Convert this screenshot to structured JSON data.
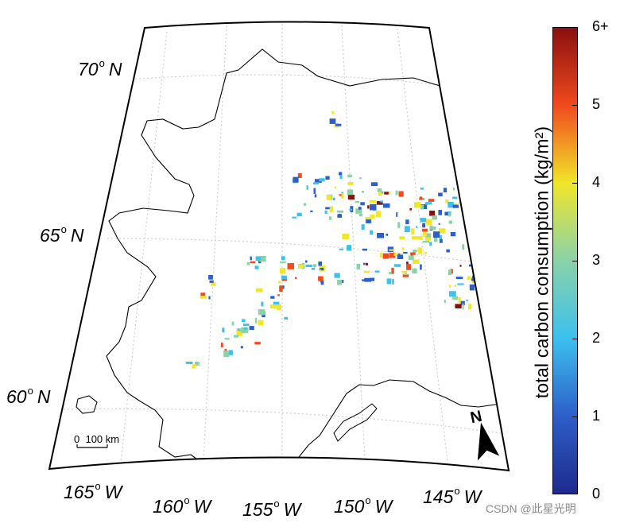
{
  "map": {
    "lat_labels": [
      {
        "deg": "70",
        "hemi": "N"
      },
      {
        "deg": "65",
        "hemi": "N"
      },
      {
        "deg": "60",
        "hemi": "N"
      }
    ],
    "lon_labels": [
      {
        "deg": "165",
        "hemi": "W"
      },
      {
        "deg": "160",
        "hemi": "W"
      },
      {
        "deg": "155",
        "hemi": "W"
      },
      {
        "deg": "150",
        "hemi": "W"
      },
      {
        "deg": "145",
        "hemi": "W"
      }
    ],
    "scale_bar": {
      "start": "0",
      "end": "100 km"
    },
    "north_arrow": "N",
    "grid": true
  },
  "colorbar": {
    "title": "total carbon consumption (kg/m²)",
    "ticks": [
      "0",
      "1",
      "2",
      "3",
      "4",
      "5",
      "6+"
    ],
    "range": [
      0,
      6
    ],
    "colors": [
      "#1f2a8c",
      "#2d5fc8",
      "#3cc0ee",
      "#8ad2a8",
      "#f0e62a",
      "#f04a1e",
      "#8a1010"
    ]
  },
  "watermark": "CSDN @此星光明"
}
